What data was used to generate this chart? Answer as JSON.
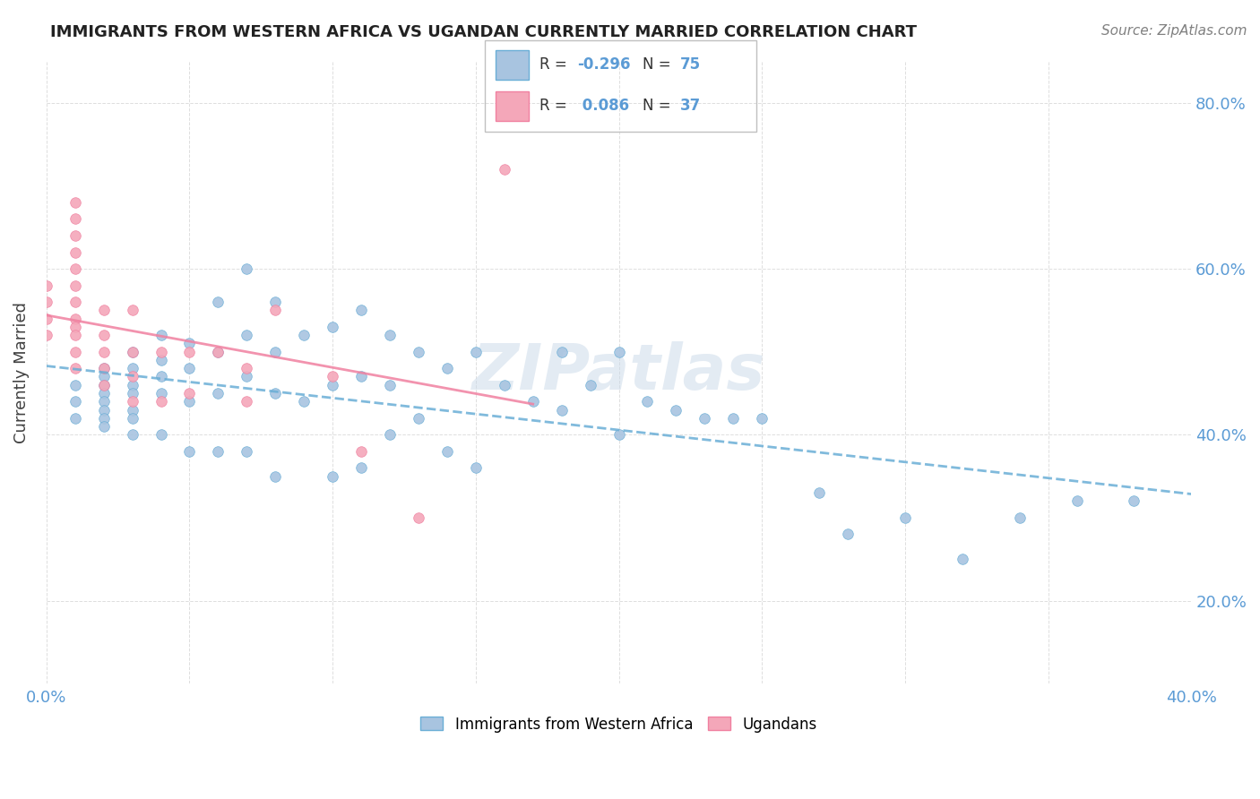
{
  "title": "IMMIGRANTS FROM WESTERN AFRICA VS UGANDAN CURRENTLY MARRIED CORRELATION CHART",
  "source": "Source: ZipAtlas.com",
  "xlabel": "",
  "ylabel": "Currently Married",
  "xlim": [
    0.0,
    0.4
  ],
  "ylim": [
    0.1,
    0.85
  ],
  "x_ticks": [
    0.0,
    0.05,
    0.1,
    0.15,
    0.2,
    0.25,
    0.3,
    0.35,
    0.4
  ],
  "y_ticks": [
    0.2,
    0.4,
    0.6,
    0.8
  ],
  "y_tick_labels": [
    "20.0%",
    "40.0%",
    "60.0%",
    "80.0%"
  ],
  "x_tick_labels": [
    "0.0%",
    "",
    "",
    "",
    "",
    "",
    "",
    "",
    "40.0%"
  ],
  "blue_R": -0.296,
  "blue_N": 75,
  "pink_R": 0.086,
  "pink_N": 37,
  "blue_color": "#a8c4e0",
  "pink_color": "#f4a7b9",
  "blue_line_color": "#6aaed6",
  "pink_line_color": "#f080a0",
  "watermark": "ZIPatlas",
  "legend_blue_label": "Immigrants from Western Africa",
  "legend_pink_label": "Ugandans",
  "blue_scatter_x": [
    0.01,
    0.01,
    0.01,
    0.02,
    0.02,
    0.02,
    0.02,
    0.02,
    0.02,
    0.02,
    0.02,
    0.03,
    0.03,
    0.03,
    0.03,
    0.03,
    0.03,
    0.03,
    0.04,
    0.04,
    0.04,
    0.04,
    0.04,
    0.05,
    0.05,
    0.05,
    0.05,
    0.06,
    0.06,
    0.06,
    0.06,
    0.07,
    0.07,
    0.07,
    0.07,
    0.08,
    0.08,
    0.08,
    0.08,
    0.09,
    0.09,
    0.1,
    0.1,
    0.1,
    0.11,
    0.11,
    0.11,
    0.12,
    0.12,
    0.12,
    0.13,
    0.13,
    0.14,
    0.14,
    0.15,
    0.15,
    0.16,
    0.17,
    0.18,
    0.18,
    0.19,
    0.2,
    0.2,
    0.21,
    0.22,
    0.23,
    0.24,
    0.25,
    0.27,
    0.28,
    0.3,
    0.32,
    0.34,
    0.36,
    0.38
  ],
  "blue_scatter_y": [
    0.46,
    0.44,
    0.42,
    0.48,
    0.47,
    0.46,
    0.45,
    0.44,
    0.43,
    0.42,
    0.41,
    0.5,
    0.48,
    0.46,
    0.45,
    0.43,
    0.42,
    0.4,
    0.52,
    0.49,
    0.47,
    0.45,
    0.4,
    0.51,
    0.48,
    0.44,
    0.38,
    0.56,
    0.5,
    0.45,
    0.38,
    0.6,
    0.52,
    0.47,
    0.38,
    0.56,
    0.5,
    0.45,
    0.35,
    0.52,
    0.44,
    0.53,
    0.46,
    0.35,
    0.55,
    0.47,
    0.36,
    0.52,
    0.46,
    0.4,
    0.5,
    0.42,
    0.48,
    0.38,
    0.5,
    0.36,
    0.46,
    0.44,
    0.5,
    0.43,
    0.46,
    0.5,
    0.4,
    0.44,
    0.43,
    0.42,
    0.42,
    0.42,
    0.33,
    0.28,
    0.3,
    0.25,
    0.3,
    0.32,
    0.32
  ],
  "pink_scatter_x": [
    0.0,
    0.0,
    0.0,
    0.0,
    0.01,
    0.01,
    0.01,
    0.01,
    0.01,
    0.01,
    0.01,
    0.01,
    0.01,
    0.01,
    0.01,
    0.01,
    0.02,
    0.02,
    0.02,
    0.02,
    0.02,
    0.03,
    0.03,
    0.03,
    0.03,
    0.04,
    0.04,
    0.05,
    0.05,
    0.06,
    0.07,
    0.07,
    0.08,
    0.1,
    0.11,
    0.13,
    0.16
  ],
  "pink_scatter_y": [
    0.58,
    0.56,
    0.54,
    0.52,
    0.68,
    0.66,
    0.64,
    0.62,
    0.6,
    0.58,
    0.56,
    0.54,
    0.53,
    0.52,
    0.5,
    0.48,
    0.55,
    0.52,
    0.5,
    0.48,
    0.46,
    0.55,
    0.5,
    0.47,
    0.44,
    0.5,
    0.44,
    0.5,
    0.45,
    0.5,
    0.48,
    0.44,
    0.55,
    0.47,
    0.38,
    0.3,
    0.72
  ]
}
